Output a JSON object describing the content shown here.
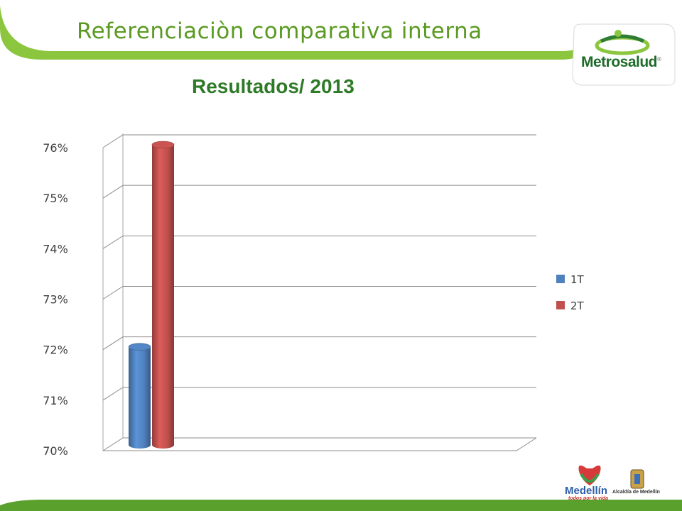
{
  "slide": {
    "title": "Referenciaciòn comparativa interna",
    "logo_text": "Metrosalud",
    "logo_mark": "®",
    "footer_logo_city": "Medellín",
    "footer_logo_tagline": "todos por la vida",
    "footer_logo_alcaldia": "Alcaldía de Medellín"
  },
  "colors": {
    "accent_green": "#5a9a22",
    "title_green": "#2f7a28",
    "series_1T": "#4f81bd",
    "series_2T": "#c0504d"
  },
  "chart_data": {
    "type": "bar",
    "title": "Resultados/ 2013",
    "categories": [
      ""
    ],
    "series": [
      {
        "name": "1T",
        "values": [
          0.72
        ],
        "color": "#4f81bd"
      },
      {
        "name": "2T",
        "values": [
          0.76
        ],
        "color": "#c0504d"
      }
    ],
    "ylim": [
      0.7,
      0.76
    ],
    "yticks": [
      "70%",
      "71%",
      "72%",
      "73%",
      "74%",
      "75%",
      "76%"
    ],
    "grid": true,
    "legend": "right",
    "style": "3d-cylinder"
  }
}
